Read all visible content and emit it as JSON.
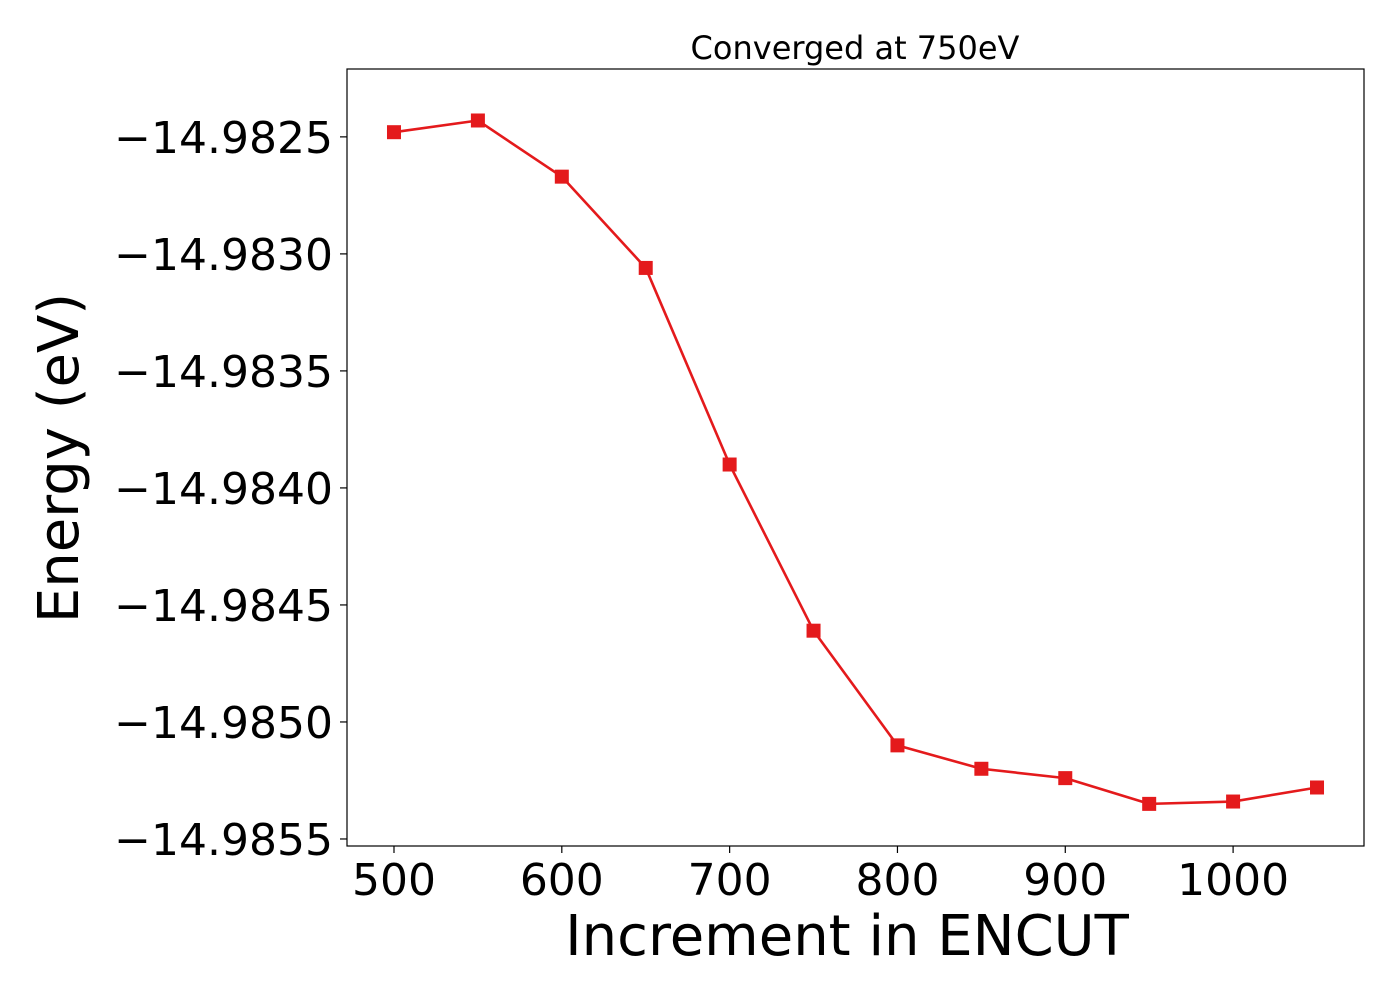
{
  "chart_data": {
    "type": "line",
    "title": "Converged at 750eV",
    "xlabel": "Increment in ENCUT",
    "ylabel": "Energy (eV)",
    "x": [
      500,
      550,
      600,
      650,
      700,
      750,
      800,
      850,
      900,
      950,
      1000,
      1050
    ],
    "series": [
      {
        "values": [
          -14.98248,
          -14.98243,
          -14.98267,
          -14.98306,
          -14.9839,
          -14.98461,
          -14.9851,
          -14.9852,
          -14.98524,
          -14.98535,
          -14.98534,
          -14.98528
        ],
        "color": "#e41a1c",
        "marker": "square"
      }
    ],
    "xlim": [
      472,
      1078
    ],
    "ylim": [
      -14.98553,
      -14.98221
    ],
    "xticks": [
      500,
      600,
      700,
      800,
      900,
      1000
    ],
    "xtick_labels": [
      "500",
      "600",
      "700",
      "800",
      "900",
      "1000"
    ],
    "yticks": [
      -14.9825,
      -14.983,
      -14.9835,
      -14.984,
      -14.9845,
      -14.985,
      -14.9855
    ],
    "ytick_labels": [
      "−14.9825",
      "−14.9830",
      "−14.9835",
      "−14.9840",
      "−14.9845",
      "−14.9850",
      "−14.9855"
    ],
    "grid": false,
    "legend": "none"
  }
}
